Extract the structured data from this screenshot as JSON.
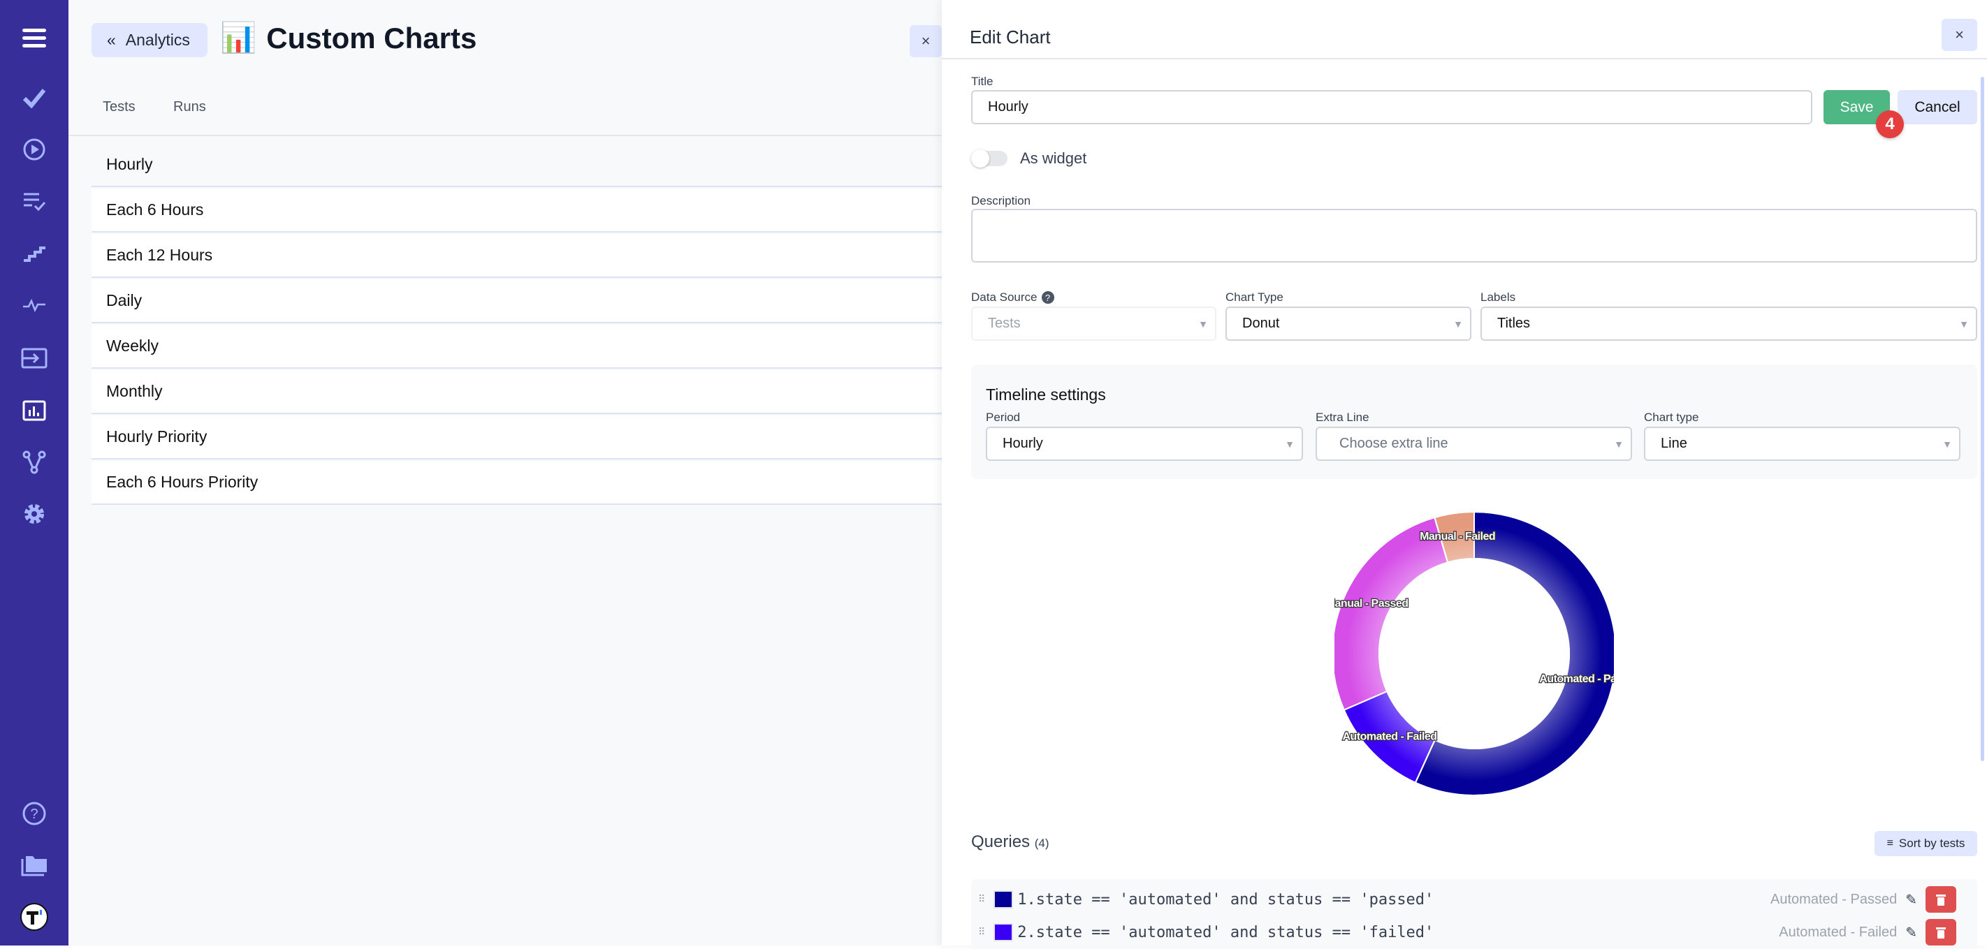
{
  "sidebar": {
    "icons": [
      "menu-icon",
      "check-icon",
      "play-circle-icon",
      "checklist-icon",
      "steps-icon",
      "pulse-icon",
      "import-icon",
      "analytics-icon",
      "branch-icon",
      "gear-icon"
    ],
    "bottom_icons": [
      "help-icon",
      "folders-icon",
      "logo-icon"
    ],
    "active": "analytics-icon"
  },
  "left": {
    "back_label": "Analytics",
    "title_emoji": "📊",
    "title": "Custom Charts",
    "tabs": [
      {
        "label": "Tests"
      },
      {
        "label": "Runs"
      }
    ],
    "charts": [
      {
        "label": "Hourly",
        "selected": true
      },
      {
        "label": "Each 6 Hours"
      },
      {
        "label": "Each 12 Hours"
      },
      {
        "label": "Daily"
      },
      {
        "label": "Weekly"
      },
      {
        "label": "Monthly"
      },
      {
        "label": "Hourly Priority"
      },
      {
        "label": "Each 6 Hours Priority"
      }
    ],
    "close_label": "×"
  },
  "editor": {
    "heading": "Edit Chart",
    "close_label": "×",
    "title_label": "Title",
    "title_value": "Hourly",
    "save_label": "Save",
    "cancel_label": "Cancel",
    "step_badge": "4",
    "widget_label": "As widget",
    "widget_on": false,
    "description_label": "Description",
    "description_value": "",
    "data_source_label": "Data Source",
    "data_source_value": "Tests",
    "chart_type_label": "Chart Type",
    "chart_type_value": "Donut",
    "labels_label": "Labels",
    "labels_value": "Titles",
    "timeline": {
      "heading": "Timeline settings",
      "period_label": "Period",
      "period_value": "Hourly",
      "extra_line_label": "Extra Line",
      "extra_line_placeholder": "Choose extra line",
      "chart_type_label": "Chart type",
      "chart_type_value": "Line"
    },
    "queries_heading": "Queries",
    "queries_count": "(4)",
    "sort_label": "Sort by tests",
    "queries": [
      {
        "query": "1.state == 'automated' and status == 'passed'",
        "label": "Automated - Passed",
        "color": "#040098"
      },
      {
        "query": "2.state == 'automated' and status == 'failed'",
        "label": "Automated - Failed",
        "color": "#3a00f5"
      }
    ]
  },
  "chart_data": {
    "type": "pie",
    "donut": true,
    "labels": [
      "Automated - Passed",
      "Automated - Failed",
      "Manual - Passed",
      "Manual - Failed"
    ],
    "values": [
      56.8,
      11.7,
      27.0,
      4.5
    ],
    "colors": [
      "#040098",
      "#3a00f5",
      "#d64ee8",
      "#e49a7c"
    ]
  }
}
